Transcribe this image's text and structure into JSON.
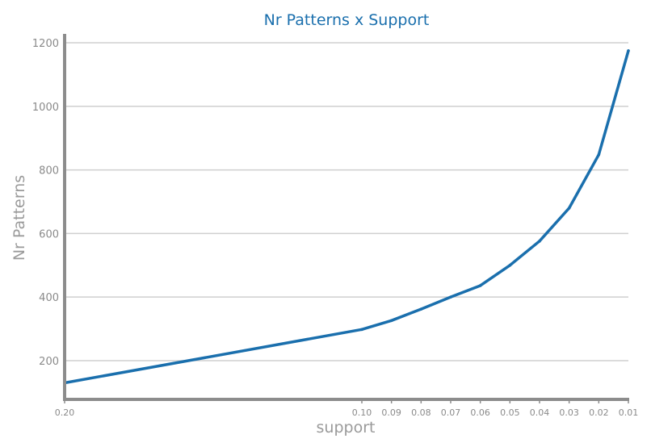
{
  "chart_data": {
    "type": "line",
    "title": "Nr Patterns x Support",
    "xlabel": "support",
    "ylabel": "Nr Patterns",
    "x_ticks": [
      "0.20",
      "0.10",
      "0.09",
      "0.08",
      "0.07",
      "0.06",
      "0.05",
      "0.04",
      "0.03",
      "0.02",
      "0.01"
    ],
    "y_ticks": [
      200,
      400,
      600,
      800,
      1000,
      1200
    ],
    "ylim": [
      78,
      1228
    ],
    "grid": true,
    "series": [
      {
        "name": "Nr Patterns",
        "color": "#1a6fad",
        "x": [
          0.2,
          0.1,
          0.09,
          0.08,
          0.07,
          0.06,
          0.05,
          0.04,
          0.03,
          0.02,
          0.01
        ],
        "values": [
          130,
          298,
          326,
          362,
          400,
          436,
          500,
          576,
          680,
          848,
          1175
        ]
      }
    ]
  }
}
